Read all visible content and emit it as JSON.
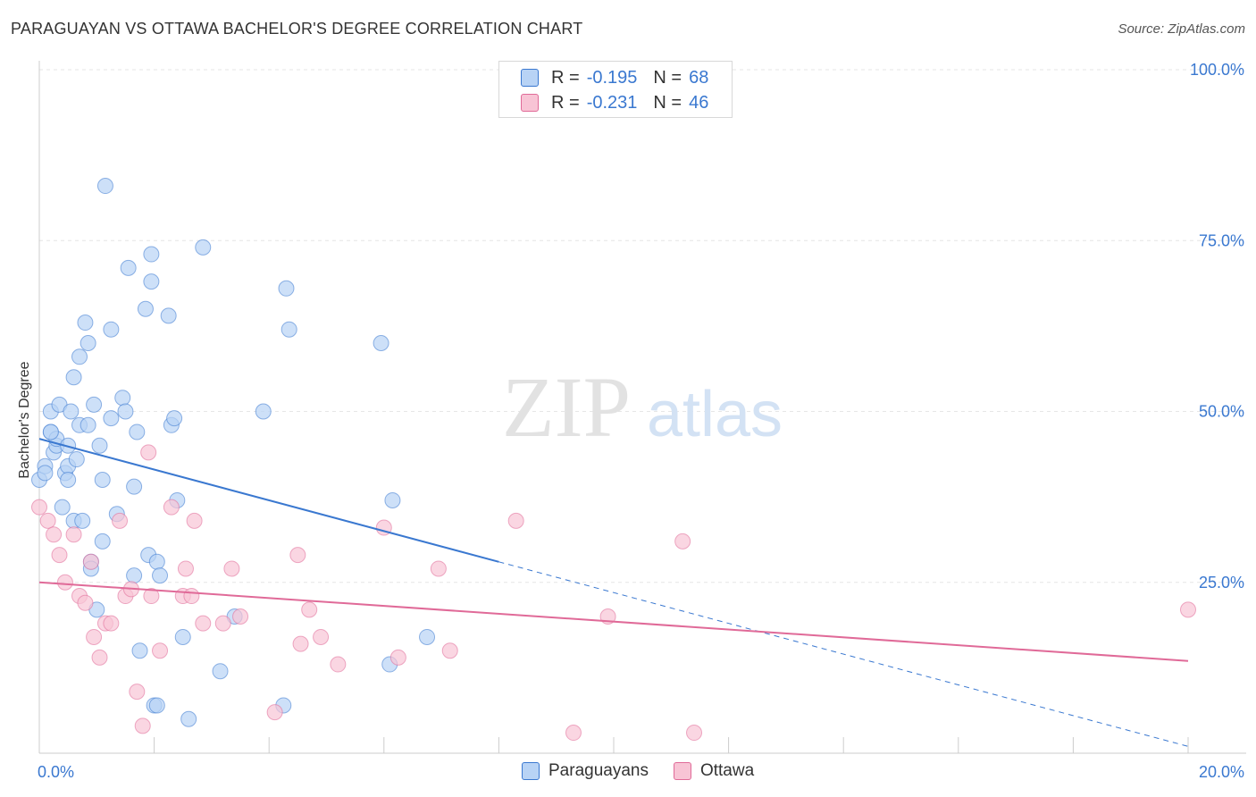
{
  "chart_data": {
    "type": "scatter",
    "title": "PARAGUAYAN VS OTTAWA BACHELOR'S DEGREE CORRELATION CHART",
    "source": "Source: ZipAtlas.com",
    "ylabel": "Bachelor's Degree",
    "xlabel": "",
    "xlim": [
      0,
      20
    ],
    "ylim": [
      0,
      100
    ],
    "x_tick_labels": {
      "min": "0.0%",
      "max": "20.0%"
    },
    "y_tick_labels": [
      "25.0%",
      "50.0%",
      "75.0%",
      "100.0%"
    ],
    "y_ticks": [
      25,
      50,
      75,
      100
    ],
    "watermark": {
      "part1": "ZIP",
      "part2": "atlas"
    },
    "colors": {
      "blue": "#3a78d0",
      "pink": "#e06a98",
      "blue_fill": "#b8d3f5",
      "pink_fill": "#f8c4d5"
    },
    "legend": [
      {
        "r_label": "R =",
        "r_value": "-0.195",
        "n_label": "N =",
        "n_value": "68"
      },
      {
        "r_label": "R =",
        "r_value": "-0.231",
        "n_label": "N =",
        "n_value": "46"
      }
    ],
    "series": [
      {
        "name": "Paraguayans",
        "color": "#3a78d0",
        "fill": "#b8d3f5",
        "trend": {
          "x0": 0,
          "y0": 46,
          "x1": 8,
          "y1": 28,
          "dash_x1": 20,
          "dash_y1": 1
        },
        "points": [
          [
            0.0,
            40
          ],
          [
            0.1,
            42
          ],
          [
            0.1,
            41
          ],
          [
            0.2,
            50
          ],
          [
            0.2,
            47
          ],
          [
            0.25,
            44
          ],
          [
            0.3,
            45
          ],
          [
            0.3,
            46
          ],
          [
            0.35,
            51
          ],
          [
            0.4,
            36
          ],
          [
            0.45,
            41
          ],
          [
            0.5,
            42
          ],
          [
            0.5,
            45
          ],
          [
            0.5,
            40
          ],
          [
            0.55,
            50
          ],
          [
            0.6,
            34
          ],
          [
            0.6,
            55
          ],
          [
            0.65,
            43
          ],
          [
            0.7,
            58
          ],
          [
            0.7,
            48
          ],
          [
            0.75,
            34
          ],
          [
            0.8,
            63
          ],
          [
            0.85,
            60
          ],
          [
            0.85,
            48
          ],
          [
            0.9,
            28
          ],
          [
            0.9,
            27
          ],
          [
            0.95,
            51
          ],
          [
            1.0,
            21
          ],
          [
            1.05,
            45
          ],
          [
            1.1,
            31
          ],
          [
            1.1,
            40
          ],
          [
            1.15,
            83
          ],
          [
            1.25,
            49
          ],
          [
            1.25,
            62
          ],
          [
            1.35,
            35
          ],
          [
            1.45,
            52
          ],
          [
            1.5,
            50
          ],
          [
            1.55,
            71
          ],
          [
            1.65,
            39
          ],
          [
            1.65,
            26
          ],
          [
            1.7,
            47
          ],
          [
            1.75,
            15
          ],
          [
            1.85,
            65
          ],
          [
            1.9,
            29
          ],
          [
            1.95,
            73
          ],
          [
            1.95,
            69
          ],
          [
            2.0,
            7
          ],
          [
            2.05,
            7
          ],
          [
            2.05,
            28
          ],
          [
            2.1,
            26
          ],
          [
            2.25,
            64
          ],
          [
            2.3,
            48
          ],
          [
            2.35,
            49
          ],
          [
            2.4,
            37
          ],
          [
            2.5,
            17
          ],
          [
            2.6,
            5
          ],
          [
            2.85,
            74
          ],
          [
            3.15,
            12
          ],
          [
            3.4,
            20
          ],
          [
            3.9,
            50
          ],
          [
            4.25,
            7
          ],
          [
            4.3,
            68
          ],
          [
            4.35,
            62
          ],
          [
            5.95,
            60
          ],
          [
            6.1,
            13
          ],
          [
            6.15,
            37
          ],
          [
            6.75,
            17
          ],
          [
            0.2,
            47
          ]
        ]
      },
      {
        "name": "Ottawa",
        "color": "#e06a98",
        "fill": "#f8c4d5",
        "trend": {
          "x0": 0,
          "y0": 25,
          "x1": 20,
          "y1": 13.5
        },
        "points": [
          [
            0.0,
            36
          ],
          [
            0.15,
            34
          ],
          [
            0.25,
            32
          ],
          [
            0.35,
            29
          ],
          [
            0.45,
            25
          ],
          [
            0.6,
            32
          ],
          [
            0.7,
            23
          ],
          [
            0.8,
            22
          ],
          [
            0.9,
            28
          ],
          [
            0.95,
            17
          ],
          [
            1.05,
            14
          ],
          [
            1.15,
            19
          ],
          [
            1.25,
            19
          ],
          [
            1.4,
            34
          ],
          [
            1.5,
            23
          ],
          [
            1.6,
            24
          ],
          [
            1.7,
            9
          ],
          [
            1.8,
            4
          ],
          [
            1.9,
            44
          ],
          [
            1.95,
            23
          ],
          [
            2.1,
            15
          ],
          [
            2.3,
            36
          ],
          [
            2.5,
            23
          ],
          [
            2.55,
            27
          ],
          [
            2.65,
            23
          ],
          [
            2.7,
            34
          ],
          [
            2.85,
            19
          ],
          [
            3.2,
            19
          ],
          [
            3.35,
            27
          ],
          [
            3.5,
            20
          ],
          [
            4.1,
            6
          ],
          [
            4.5,
            29
          ],
          [
            4.55,
            16
          ],
          [
            4.7,
            21
          ],
          [
            4.9,
            17
          ],
          [
            5.2,
            13
          ],
          [
            6.0,
            33
          ],
          [
            6.25,
            14
          ],
          [
            6.95,
            27
          ],
          [
            7.15,
            15
          ],
          [
            8.3,
            34
          ],
          [
            9.3,
            3
          ],
          [
            9.9,
            20
          ],
          [
            11.2,
            31
          ],
          [
            11.4,
            3
          ],
          [
            20.0,
            21
          ]
        ]
      }
    ]
  }
}
